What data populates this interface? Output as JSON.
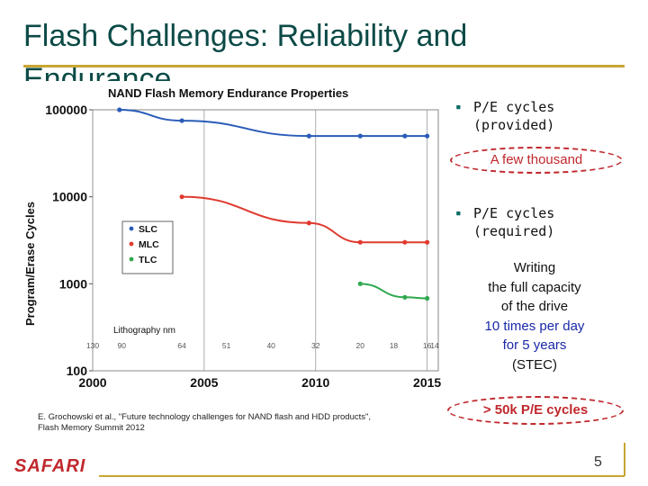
{
  "slide": {
    "title": "Flash Challenges: Reliability and Endurance",
    "brand": "SAFARI",
    "page_number": "5",
    "citation_line1": "E. Grochowski et al., \"Future technology challenges for NAND flash and HDD products\",",
    "citation_line2": "Flash Memory Summit 2012"
  },
  "bullets": [
    {
      "marker": "▪",
      "text": "P/E cycles\n(provided)"
    },
    {
      "marker": "▪",
      "text": "P/E cycles\n(required)"
    }
  ],
  "callouts": {
    "provided_estimate": "A few thousand",
    "required_estimate": "> 50k P/E cycles"
  },
  "note": {
    "line1": "Writing",
    "line2": "the full capacity",
    "line3": "of the drive",
    "line4": "10 times per day",
    "line5": "for 5 years",
    "line6": "(STEC)"
  },
  "colors": {
    "title": "#0b4a46",
    "accent_rule": "#c8a632",
    "callout": "#c0282d",
    "slc": "#2a5cb8",
    "mlc": "#e03a2f",
    "tlc": "#2fa84f"
  },
  "chart_data": {
    "type": "line",
    "title": "NAND Flash Memory Endurance Properties",
    "xlabel": "",
    "ylabel": "Program/Erase Cycles",
    "yscale": "log",
    "ylim": [
      100,
      100000
    ],
    "xlim": [
      2000,
      2015.5
    ],
    "x_ticks": [
      "2000",
      "2005",
      "2010",
      "2015"
    ],
    "y_ticks": [
      "100",
      "1000",
      "10000",
      "100000"
    ],
    "lithography_label": "Lithography nm",
    "lithography_ticks": [
      {
        "year": 2000,
        "label": "130"
      },
      {
        "year": 2001.3,
        "label": "90"
      },
      {
        "year": 2004,
        "label": "64"
      },
      {
        "year": 2006,
        "label": "51"
      },
      {
        "year": 2008,
        "label": "40"
      },
      {
        "year": 2010,
        "label": "32"
      },
      {
        "year": 2012,
        "label": "20"
      },
      {
        "year": 2013.5,
        "label": "18"
      },
      {
        "year": 2015,
        "label": "16"
      },
      {
        "year": 2016.2,
        "label": "14"
      }
    ],
    "legend": [
      "SLC",
      "MLC",
      "TLC"
    ],
    "legend_position": "left",
    "series": [
      {
        "name": "SLC",
        "x": [
          2001.2,
          2004,
          2009.7,
          2012,
          2014,
          2015
        ],
        "y": [
          100000,
          75000,
          50000,
          50000,
          50000,
          50000
        ]
      },
      {
        "name": "MLC",
        "x": [
          2004,
          2009.7,
          2012,
          2014,
          2015
        ],
        "y": [
          10000,
          5000,
          3000,
          3000,
          3000
        ]
      },
      {
        "name": "TLC",
        "x": [
          2012,
          2014,
          2015
        ],
        "y": [
          1000,
          700,
          680
        ]
      }
    ]
  }
}
